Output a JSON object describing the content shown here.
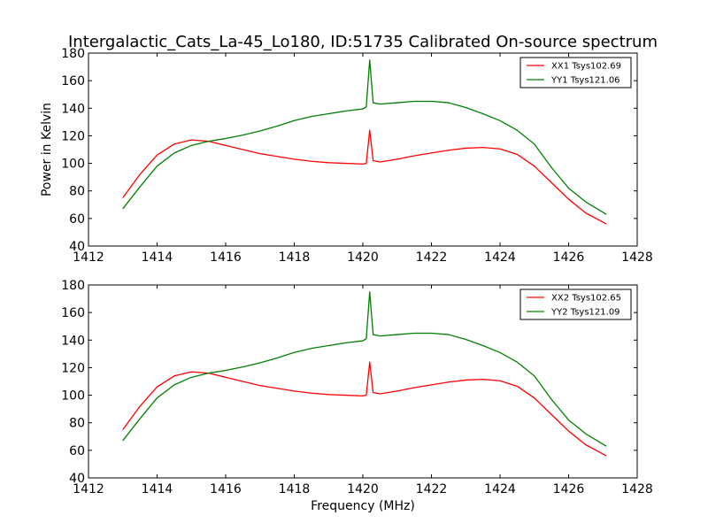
{
  "figure": {
    "title": "Intergalactic_Cats_La-45_Lo180, ID:51735 Calibrated On-source spectrum"
  },
  "chart_data": [
    {
      "type": "line",
      "title": "Intergalactic_Cats_La-45_Lo180, ID:51735 Calibrated On-source spectrum",
      "xlabel": "",
      "ylabel": "Power in Kelvin",
      "xlim": [
        1412,
        1428
      ],
      "ylim": [
        40,
        180
      ],
      "xticks": [
        "1412",
        "1414",
        "1416",
        "1418",
        "1420",
        "1422",
        "1424",
        "1426",
        "1428"
      ],
      "yticks": [
        "40",
        "60",
        "80",
        "100",
        "120",
        "140",
        "160",
        "180"
      ],
      "legend_position": "top-right",
      "series": [
        {
          "name": "XX1 Tsys102.69",
          "color": "#ff0000",
          "x": [
            1413.0,
            1413.5,
            1414.0,
            1414.5,
            1415.0,
            1415.5,
            1416.0,
            1416.5,
            1417.0,
            1417.5,
            1418.0,
            1418.5,
            1419.0,
            1419.5,
            1420.0,
            1420.1,
            1420.2,
            1420.3,
            1420.5,
            1421.0,
            1421.5,
            1422.0,
            1422.5,
            1423.0,
            1423.5,
            1424.0,
            1424.5,
            1425.0,
            1425.5,
            1426.0,
            1426.5,
            1427.1
          ],
          "y": [
            75,
            92,
            106,
            114,
            117,
            116,
            113,
            110,
            107,
            105,
            103,
            101.5,
            100.5,
            100,
            99.5,
            100,
            124,
            102,
            101,
            103,
            105.5,
            107.5,
            109.5,
            111,
            111.5,
            110.5,
            106.5,
            98,
            86,
            74,
            64,
            56
          ]
        },
        {
          "name": "YY1 Tsys121.06",
          "color": "#008000",
          "x": [
            1413.0,
            1413.5,
            1414.0,
            1414.5,
            1415.0,
            1415.5,
            1416.0,
            1416.5,
            1417.0,
            1417.5,
            1418.0,
            1418.5,
            1419.0,
            1419.5,
            1420.0,
            1420.1,
            1420.2,
            1420.3,
            1420.5,
            1421.0,
            1421.5,
            1422.0,
            1422.5,
            1423.0,
            1423.5,
            1424.0,
            1424.5,
            1425.0,
            1425.5,
            1426.0,
            1426.5,
            1427.1
          ],
          "y": [
            67,
            83,
            98,
            107.5,
            113,
            116,
            118,
            120.5,
            123.5,
            127,
            131,
            134,
            136,
            138,
            139.5,
            141,
            175,
            144,
            143,
            144,
            145,
            145,
            144,
            140.5,
            136,
            131,
            124,
            114,
            97,
            82,
            72,
            63
          ]
        }
      ]
    },
    {
      "type": "line",
      "title": "",
      "xlabel": "Frequency (MHz)",
      "ylabel": "",
      "xlim": [
        1412,
        1428
      ],
      "ylim": [
        40,
        180
      ],
      "xticks": [
        "1412",
        "1414",
        "1416",
        "1418",
        "1420",
        "1422",
        "1424",
        "1426",
        "1428"
      ],
      "yticks": [
        "40",
        "60",
        "80",
        "100",
        "120",
        "140",
        "160",
        "180"
      ],
      "legend_position": "top-right",
      "series": [
        {
          "name": "XX2 Tsys102.65",
          "color": "#ff0000",
          "x": [
            1413.0,
            1413.5,
            1414.0,
            1414.5,
            1415.0,
            1415.5,
            1416.0,
            1416.5,
            1417.0,
            1417.5,
            1418.0,
            1418.5,
            1419.0,
            1419.5,
            1420.0,
            1420.1,
            1420.2,
            1420.3,
            1420.5,
            1421.0,
            1421.5,
            1422.0,
            1422.5,
            1423.0,
            1423.5,
            1424.0,
            1424.5,
            1425.0,
            1425.5,
            1426.0,
            1426.5,
            1427.1
          ],
          "y": [
            75,
            92,
            106,
            114,
            117,
            116,
            113,
            110,
            107,
            105,
            103,
            101.5,
            100.5,
            100,
            99.5,
            100,
            124,
            102,
            101,
            103,
            105.5,
            107.5,
            109.5,
            111,
            111.5,
            110.5,
            106.5,
            98,
            86,
            74,
            64,
            56
          ]
        },
        {
          "name": "YY2 Tsys121.09",
          "color": "#008000",
          "x": [
            1413.0,
            1413.5,
            1414.0,
            1414.5,
            1415.0,
            1415.5,
            1416.0,
            1416.5,
            1417.0,
            1417.5,
            1418.0,
            1418.5,
            1419.0,
            1419.5,
            1420.0,
            1420.1,
            1420.2,
            1420.3,
            1420.5,
            1421.0,
            1421.5,
            1422.0,
            1422.5,
            1423.0,
            1423.5,
            1424.0,
            1424.5,
            1425.0,
            1425.5,
            1426.0,
            1426.5,
            1427.1
          ],
          "y": [
            67,
            83,
            98,
            107.5,
            113,
            116,
            118,
            120.5,
            123.5,
            127,
            131,
            134,
            136,
            138,
            139.5,
            141,
            175,
            144,
            143,
            144,
            145,
            145,
            144,
            140.5,
            136,
            131,
            124,
            114,
            97,
            82,
            72,
            63
          ]
        }
      ]
    }
  ]
}
